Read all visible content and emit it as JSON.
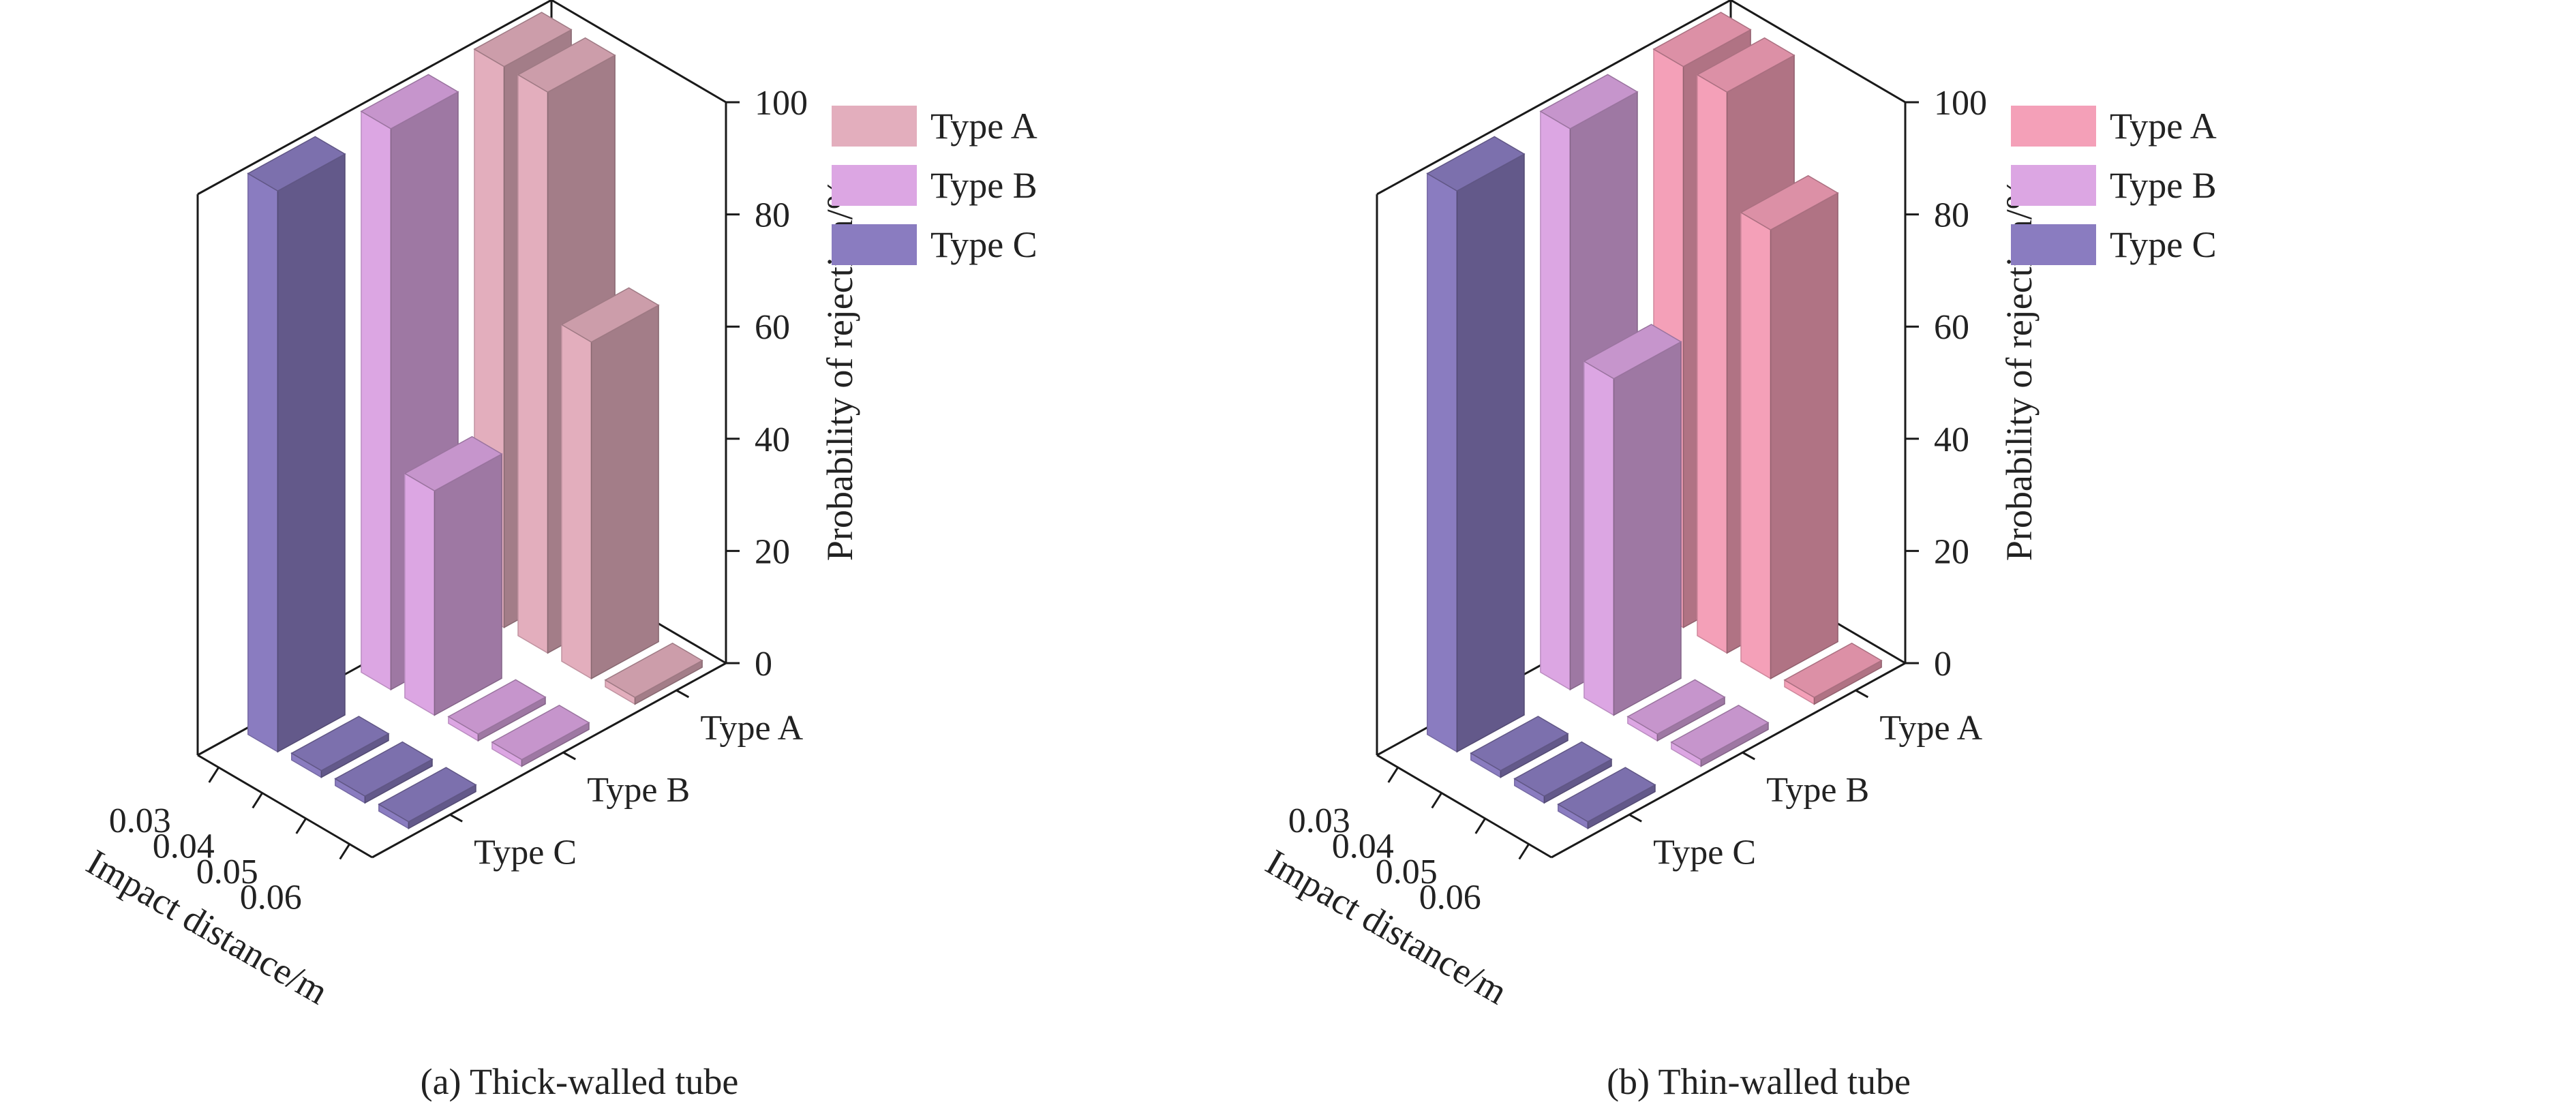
{
  "chart_data": [
    {
      "type": "bar3d",
      "caption": "(a) Thick-walled tube",
      "xlabel": "Impact distance/m",
      "ylabel": "",
      "zlabel": "Probability of rejection/%",
      "x_categories": [
        "0.03",
        "0.04",
        "0.05",
        "0.06"
      ],
      "y_categories": [
        "Type A",
        "Type B",
        "Type C"
      ],
      "zlim": [
        0,
        100
      ],
      "z_ticks": [
        "0",
        "20",
        "40",
        "60",
        "80",
        "100"
      ],
      "legend_position": "top-right",
      "series": [
        {
          "name": "Type A",
          "color": "#e3aebd",
          "values": [
            100,
            100,
            60,
            0
          ]
        },
        {
          "name": "Type B",
          "color": "#dca6e3",
          "values": [
            100,
            40,
            0,
            0
          ]
        },
        {
          "name": "Type C",
          "color": "#8a7cc0",
          "values": [
            100,
            0,
            0,
            0
          ]
        }
      ]
    },
    {
      "type": "bar3d",
      "caption": "(b) Thin-walled tube",
      "xlabel": "Impact distance/m",
      "ylabel": "",
      "zlabel": "Probability of rejection/%",
      "x_categories": [
        "0.03",
        "0.04",
        "0.05",
        "0.06"
      ],
      "y_categories": [
        "Type A",
        "Type B",
        "Type C"
      ],
      "zlim": [
        0,
        100
      ],
      "z_ticks": [
        "0",
        "20",
        "40",
        "60",
        "80",
        "100"
      ],
      "legend_position": "top-right",
      "series": [
        {
          "name": "Type A",
          "color": "#f4a0b8",
          "values": [
            100,
            100,
            80,
            0
          ]
        },
        {
          "name": "Type B",
          "color": "#dca6e3",
          "values": [
            100,
            60,
            0,
            0
          ]
        },
        {
          "name": "Type C",
          "color": "#8a7cc0",
          "values": [
            100,
            0,
            0,
            0
          ]
        }
      ]
    }
  ]
}
